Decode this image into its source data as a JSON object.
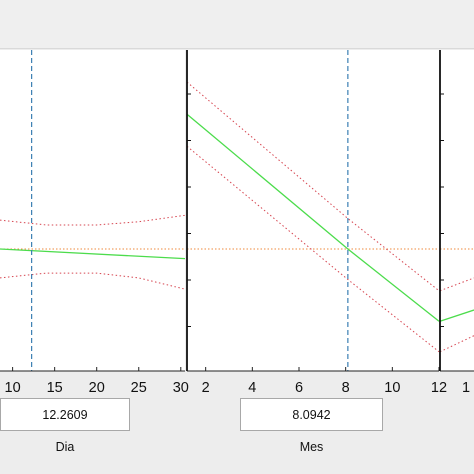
{
  "chart_data": [
    {
      "type": "line",
      "xlabel": "Dia",
      "xlim": [
        8.5,
        30.5
      ],
      "ylim": [
        0,
        1
      ],
      "xticks": [
        "10",
        "15",
        "20",
        "25",
        "30"
      ],
      "xtick_values": [
        10,
        15,
        20,
        25,
        30
      ],
      "marker_value": 12.2609,
      "value_display": "12.2609",
      "reference_y": 0.38,
      "fit": {
        "x": [
          8.5,
          30.5
        ],
        "y": [
          0.38,
          0.35
        ]
      },
      "upper_bound": {
        "x": [
          8.5,
          14,
          20,
          25,
          30.5
        ],
        "y": [
          0.47,
          0.455,
          0.455,
          0.465,
          0.485
        ]
      },
      "lower_bound": {
        "x": [
          8.5,
          14,
          20,
          25,
          30.5
        ],
        "y": [
          0.29,
          0.305,
          0.305,
          0.29,
          0.255
        ]
      },
      "colors": {
        "fit": "#4cdc4c",
        "bounds": "#d64550",
        "marker": "#3b7fb3",
        "reference": "#ef8a3c"
      }
    },
    {
      "type": "line",
      "xlabel": "Mes",
      "xlim": [
        1.2,
        12
      ],
      "ylim": [
        0,
        1
      ],
      "xticks": [
        "2",
        "4",
        "6",
        "8",
        "10",
        "12"
      ],
      "xtick_values": [
        2,
        4,
        6,
        8,
        10,
        12
      ],
      "marker_value": 8.0942,
      "value_display": "8.0942",
      "reference_y": 0.38,
      "fit": {
        "x": [
          1.2,
          8.0942,
          12
        ],
        "y": [
          0.8,
          0.38,
          0.155
        ]
      },
      "upper_bound": {
        "x": [
          1.2,
          8.0942,
          12
        ],
        "y": [
          0.9,
          0.475,
          0.25
        ]
      },
      "lower_bound": {
        "x": [
          1.2,
          8.0942,
          12
        ],
        "y": [
          0.7,
          0.285,
          0.06
        ]
      },
      "colors": {
        "fit": "#4cdc4c",
        "bounds": "#d64550",
        "marker": "#3b7fb3",
        "reference": "#ef8a3c"
      }
    },
    {
      "type": "line",
      "xlabel": "",
      "xticks": [
        "1"
      ],
      "partial": true,
      "reference_y": 0.38,
      "fit": {
        "y": [
          0.155,
          0.19
        ]
      },
      "upper_bound": {
        "y": [
          0.25,
          0.29
        ]
      },
      "lower_bound": {
        "y": [
          0.06,
          0.11
        ]
      },
      "colors": {
        "fit": "#4cdc4c",
        "bounds": "#d64550",
        "reference": "#ef8a3c"
      }
    }
  ]
}
